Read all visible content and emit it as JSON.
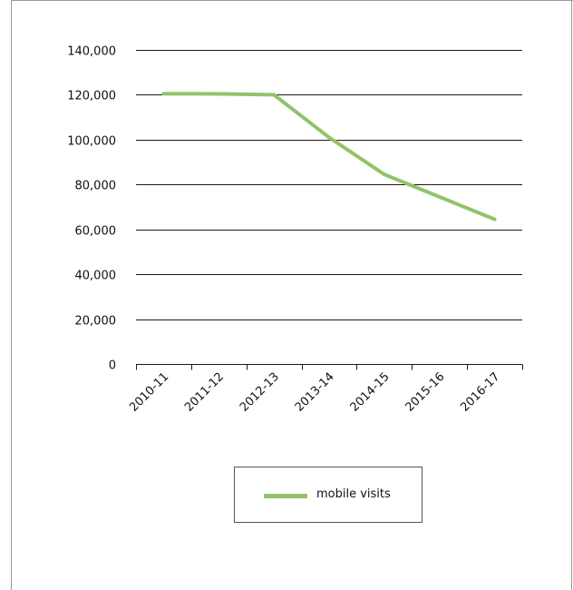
{
  "chart_data": {
    "type": "line",
    "categories": [
      "2010-11",
      "2011-12",
      "2012-13",
      "2013-14",
      "2014-15",
      "2015-16",
      "2016-17"
    ],
    "series": [
      {
        "name": "mobile visits",
        "values": [
          120500,
          120400,
          120000,
          101000,
          84500,
          74500,
          64500
        ],
        "color": "#92c36a"
      }
    ],
    "xlabel": "",
    "ylabel": "",
    "ylim": [
      0,
      140000
    ],
    "y_ticks": [
      0,
      20000,
      40000,
      60000,
      80000,
      100000,
      120000,
      140000
    ],
    "y_tick_labels": [
      "0",
      "20,000",
      "40,000",
      "60,000",
      "80,000",
      "100,000",
      "120,000",
      "140,000"
    ],
    "grid": true,
    "legend": {
      "position": "bottom",
      "label": "mobile visits"
    }
  }
}
